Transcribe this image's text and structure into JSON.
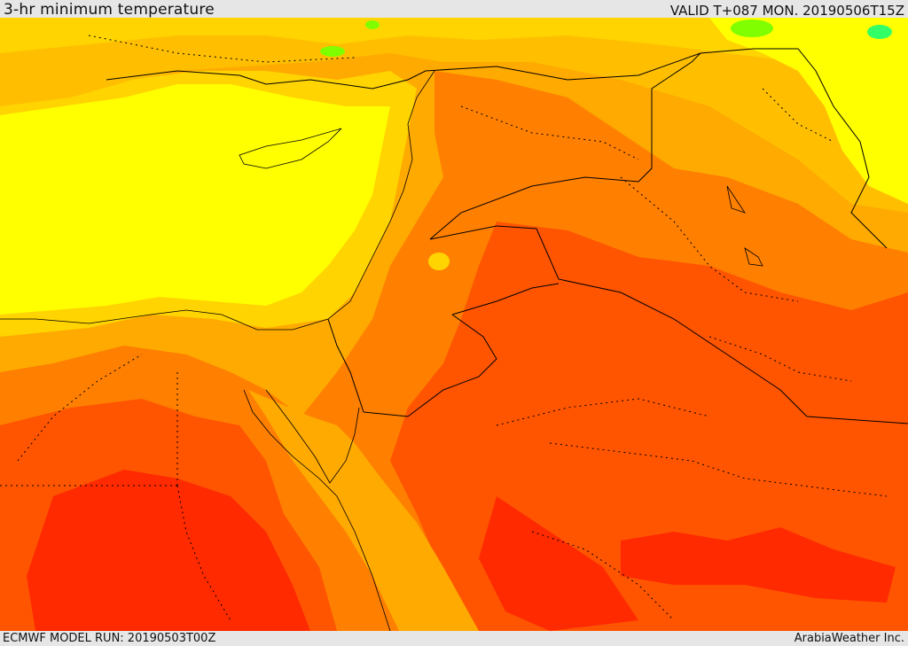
{
  "header": {
    "title": "3-hr minimum temperature",
    "valid": "VALID T+087 MON. 20190506T15Z"
  },
  "footer": {
    "model_run": "ECMWF MODEL RUN: 20190503T00Z",
    "credit": "ArabiaWeather Inc."
  },
  "map": {
    "variable": "3-hr minimum temperature",
    "palette": [
      "#ff2a00",
      "#ff5500",
      "#ff7f00",
      "#ffaa00",
      "#ffd400",
      "#ffff00",
      "#80ff00",
      "#33ff66",
      "#00ffa0"
    ],
    "border_color": "#000000"
  }
}
